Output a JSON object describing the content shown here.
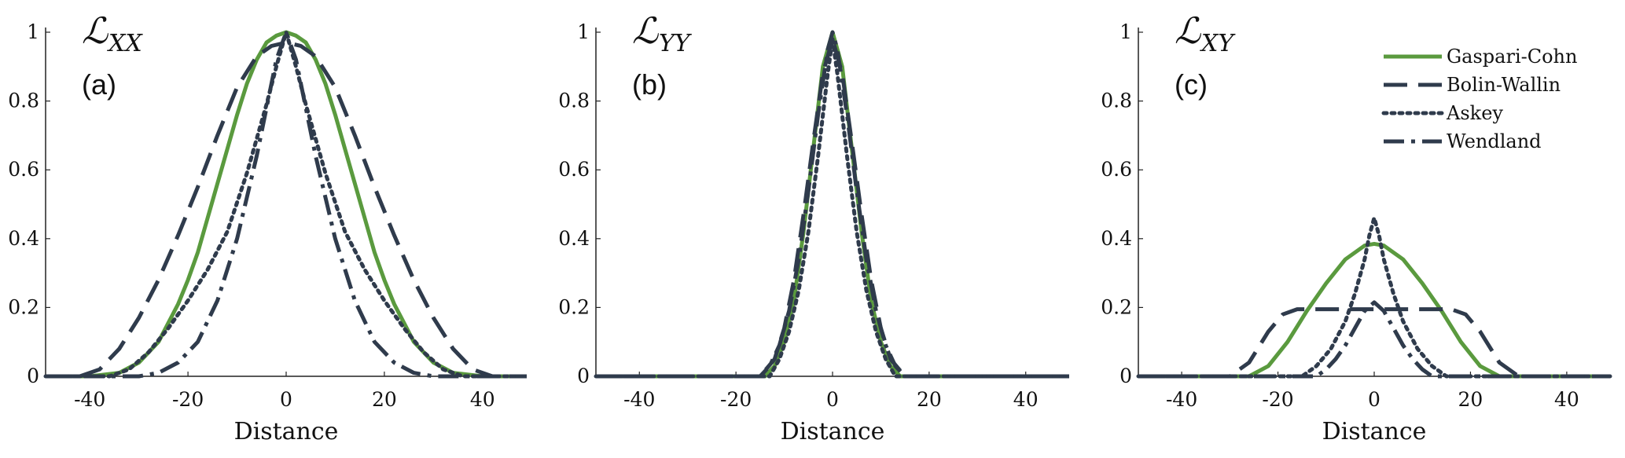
{
  "figure": {
    "series_styles": [
      {
        "name": "Gaspari-Cohn",
        "color": "#5a9a3e",
        "dash": "solid"
      },
      {
        "name": "Bolin-Wallin",
        "color": "#2f3b4c",
        "dash": "long-dash"
      },
      {
        "name": "Askey",
        "color": "#2f3b4c",
        "dash": "dotted"
      },
      {
        "name": "Wendland",
        "color": "#2f3b4c",
        "dash": "dash-dot"
      }
    ]
  },
  "chart_data": [
    {
      "type": "line",
      "panel_label": "(a)",
      "title_main": "ℒ",
      "title_sub": "XX",
      "xlabel": "Distance",
      "ylabel": "",
      "xlim": [
        -49,
        49
      ],
      "ylim": [
        0,
        1
      ],
      "xticks": [
        "-40",
        "-20",
        "0",
        "20",
        "40"
      ],
      "yticks": [
        "0",
        "0.2",
        "0.4",
        "0.6",
        "0.8",
        "1"
      ],
      "legend": false,
      "series": [
        {
          "name": "Gaspari-Cohn",
          "x": [
            -49,
            -40,
            -34,
            -30,
            -26,
            -22,
            -20,
            -18,
            -16,
            -14,
            -12,
            -10,
            -8,
            -6,
            -4,
            -2,
            0,
            2,
            4,
            6,
            8,
            10,
            12,
            14,
            16,
            18,
            20,
            22,
            26,
            30,
            34,
            40,
            49
          ],
          "y": [
            0,
            0,
            0.01,
            0.04,
            0.1,
            0.21,
            0.28,
            0.36,
            0.46,
            0.56,
            0.66,
            0.76,
            0.85,
            0.92,
            0.97,
            0.99,
            1,
            0.99,
            0.97,
            0.92,
            0.85,
            0.76,
            0.66,
            0.56,
            0.46,
            0.36,
            0.28,
            0.21,
            0.1,
            0.04,
            0.01,
            0,
            0
          ]
        },
        {
          "name": "Bolin-Wallin",
          "x": [
            -49,
            -42,
            -38,
            -34,
            -30,
            -26,
            -22,
            -18,
            -14,
            -10,
            -6,
            -3,
            0,
            3,
            6,
            10,
            14,
            18,
            22,
            26,
            30,
            34,
            38,
            42,
            49
          ],
          "y": [
            0,
            0,
            0.02,
            0.08,
            0.17,
            0.28,
            0.41,
            0.55,
            0.7,
            0.84,
            0.93,
            0.96,
            0.97,
            0.96,
            0.93,
            0.84,
            0.7,
            0.55,
            0.41,
            0.28,
            0.17,
            0.08,
            0.02,
            0,
            0
          ]
        },
        {
          "name": "Askey",
          "x": [
            -49,
            -36,
            -32,
            -28,
            -24,
            -20,
            -16,
            -12,
            -8,
            -4,
            -2,
            0,
            2,
            4,
            8,
            12,
            16,
            20,
            24,
            28,
            32,
            36,
            49
          ],
          "y": [
            0,
            0,
            0.02,
            0.07,
            0.14,
            0.22,
            0.31,
            0.42,
            0.59,
            0.79,
            0.9,
            1,
            0.9,
            0.79,
            0.59,
            0.42,
            0.31,
            0.22,
            0.14,
            0.07,
            0.02,
            0,
            0
          ]
        },
        {
          "name": "Wendland",
          "x": [
            -49,
            -30,
            -26,
            -22,
            -18,
            -14,
            -10,
            -6,
            -4,
            -2,
            0,
            2,
            4,
            6,
            10,
            14,
            18,
            22,
            26,
            30,
            49
          ],
          "y": [
            0,
            0,
            0.01,
            0.04,
            0.1,
            0.22,
            0.4,
            0.64,
            0.78,
            0.92,
            1,
            0.92,
            0.78,
            0.64,
            0.4,
            0.22,
            0.1,
            0.04,
            0.01,
            0,
            0
          ]
        }
      ]
    },
    {
      "type": "line",
      "panel_label": "(b)",
      "title_main": "ℒ",
      "title_sub": "YY",
      "xlabel": "Distance",
      "ylabel": "",
      "xlim": [
        -49,
        49
      ],
      "ylim": [
        0,
        1
      ],
      "xticks": [
        "-40",
        "-20",
        "0",
        "20",
        "40"
      ],
      "yticks": [
        "0",
        "0.2",
        "0.4",
        "0.6",
        "0.8",
        "1"
      ],
      "legend": false,
      "series": [
        {
          "name": "Gaspari-Cohn",
          "x": [
            -49,
            -14,
            -12,
            -10,
            -8,
            -6,
            -4,
            -2,
            0,
            2,
            4,
            6,
            8,
            10,
            12,
            14,
            49
          ],
          "y": [
            0,
            0,
            0.03,
            0.1,
            0.22,
            0.42,
            0.66,
            0.9,
            1,
            0.9,
            0.66,
            0.42,
            0.22,
            0.1,
            0.03,
            0,
            0
          ]
        },
        {
          "name": "Bolin-Wallin",
          "x": [
            -49,
            -15,
            -12,
            -10,
            -8,
            -6,
            -4,
            -2,
            0,
            2,
            4,
            6,
            8,
            10,
            12,
            15,
            49
          ],
          "y": [
            0,
            0,
            0.05,
            0.14,
            0.28,
            0.47,
            0.68,
            0.88,
            0.98,
            0.88,
            0.68,
            0.47,
            0.28,
            0.14,
            0.05,
            0,
            0
          ]
        },
        {
          "name": "Askey",
          "x": [
            -49,
            -13,
            -11,
            -9,
            -7,
            -5,
            -3,
            -1,
            0,
            1,
            3,
            5,
            7,
            9,
            11,
            13,
            49
          ],
          "y": [
            0,
            0,
            0.05,
            0.13,
            0.25,
            0.42,
            0.64,
            0.88,
            0.98,
            0.88,
            0.64,
            0.42,
            0.25,
            0.13,
            0.05,
            0,
            0
          ]
        },
        {
          "name": "Wendland",
          "x": [
            -49,
            -15,
            -13,
            -11,
            -9,
            -7,
            -5,
            -3,
            -1,
            0,
            1,
            3,
            5,
            7,
            9,
            11,
            13,
            15,
            49
          ],
          "y": [
            0,
            0,
            0.03,
            0.09,
            0.19,
            0.34,
            0.54,
            0.76,
            0.95,
            1,
            0.95,
            0.76,
            0.54,
            0.34,
            0.19,
            0.09,
            0.03,
            0,
            0
          ]
        }
      ]
    },
    {
      "type": "line",
      "panel_label": "(c)",
      "title_main": "ℒ",
      "title_sub": "XY",
      "xlabel": "Distance",
      "ylabel": "",
      "xlim": [
        -49,
        49
      ],
      "ylim": [
        0,
        1
      ],
      "xticks": [
        "-40",
        "-20",
        "0",
        "20",
        "40"
      ],
      "yticks": [
        "0",
        "0.2",
        "0.4",
        "0.6",
        "0.8",
        "1"
      ],
      "legend": true,
      "legend_position": "top-right",
      "series": [
        {
          "name": "Gaspari-Cohn",
          "x": [
            -49,
            -26,
            -22,
            -18,
            -14,
            -10,
            -6,
            -2,
            0,
            2,
            6,
            10,
            14,
            18,
            22,
            26,
            49
          ],
          "y": [
            0,
            0,
            0.03,
            0.1,
            0.19,
            0.27,
            0.34,
            0.38,
            0.385,
            0.38,
            0.34,
            0.27,
            0.19,
            0.1,
            0.03,
            0,
            0
          ]
        },
        {
          "name": "Bolin-Wallin",
          "x": [
            -49,
            -30,
            -26,
            -22,
            -19,
            -16,
            -12,
            -6,
            0,
            6,
            12,
            16,
            19,
            22,
            26,
            30,
            49
          ],
          "y": [
            0,
            0,
            0.04,
            0.13,
            0.18,
            0.195,
            0.195,
            0.195,
            0.195,
            0.195,
            0.195,
            0.195,
            0.18,
            0.13,
            0.04,
            0,
            0
          ]
        },
        {
          "name": "Askey",
          "x": [
            -49,
            -15,
            -12,
            -9,
            -6,
            -4,
            -2,
            -1,
            0,
            1,
            2,
            4,
            6,
            9,
            12,
            15,
            49
          ],
          "y": [
            0,
            0,
            0.03,
            0.08,
            0.16,
            0.24,
            0.34,
            0.41,
            0.46,
            0.41,
            0.34,
            0.24,
            0.16,
            0.08,
            0.03,
            0,
            0
          ]
        },
        {
          "name": "Wendland",
          "x": [
            -49,
            -12,
            -10,
            -8,
            -6,
            -4,
            -2,
            0,
            2,
            4,
            6,
            8,
            10,
            12,
            49
          ],
          "y": [
            0,
            0,
            0.02,
            0.05,
            0.09,
            0.14,
            0.19,
            0.215,
            0.19,
            0.14,
            0.09,
            0.05,
            0.02,
            0,
            0
          ]
        }
      ]
    }
  ]
}
